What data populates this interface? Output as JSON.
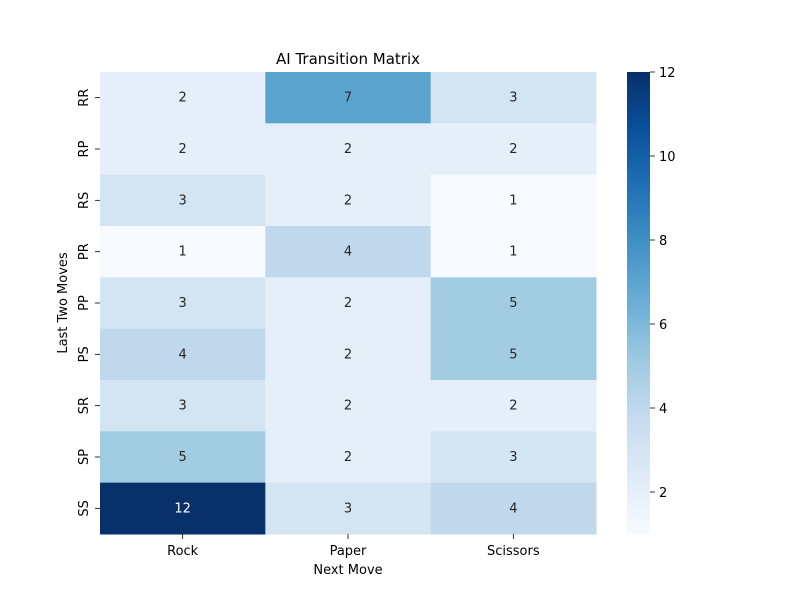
{
  "chart_data": {
    "type": "heatmap",
    "title": "AI Transition Matrix",
    "xlabel": "Next Move",
    "ylabel": "Last Two Moves",
    "x_categories": [
      "Rock",
      "Paper",
      "Scissors"
    ],
    "y_categories": [
      "RR",
      "RP",
      "RS",
      "PR",
      "PP",
      "PS",
      "SR",
      "SP",
      "SS"
    ],
    "values": [
      [
        2,
        7,
        3
      ],
      [
        2,
        2,
        2
      ],
      [
        3,
        2,
        1
      ],
      [
        1,
        4,
        1
      ],
      [
        3,
        2,
        5
      ],
      [
        4,
        2,
        5
      ],
      [
        3,
        2,
        2
      ],
      [
        5,
        2,
        3
      ],
      [
        12,
        3,
        4
      ]
    ],
    "colorbar": {
      "min": 1,
      "max": 12,
      "ticks": [
        2,
        4,
        6,
        8,
        10,
        12
      ],
      "colormap": "Blues"
    },
    "annotations": true,
    "grid": false,
    "colorbar_position": "right"
  }
}
